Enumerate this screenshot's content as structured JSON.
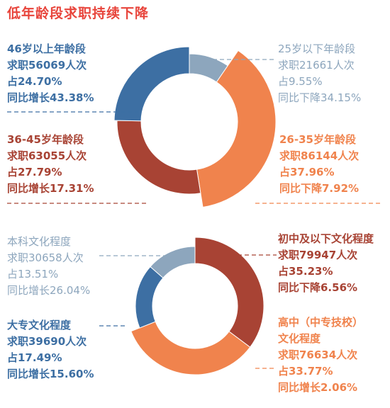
{
  "title": "低年龄段求职持续下降",
  "colors": {
    "title": "#e8453c",
    "steel_blue": "#3d6fa3",
    "light_blue": "#8da6bd",
    "dark_red": "#a84334",
    "orange": "#f0834d"
  },
  "chart_data": [
    {
      "type": "pie",
      "variant": "donut",
      "segments": [
        {
          "label": "25岁以下年龄段",
          "count": "求职21661人次",
          "share": "占9.55%",
          "change": "同比下降34.15%",
          "value": 9.55,
          "color": "#8da6bd"
        },
        {
          "label": "26-35岁年龄段",
          "count": "求职86144人次",
          "share": "占37.96%",
          "change": "同比下降7.92%",
          "value": 37.96,
          "color": "#f0834d"
        },
        {
          "label": "36-45岁年龄段",
          "count": "求职63055人次",
          "share": "占27.79%",
          "change": "同比增长17.31%",
          "value": 27.79,
          "color": "#a84334"
        },
        {
          "label": "46岁以上年龄段",
          "count": "求职56069人次",
          "share": "占24.70%",
          "change": "同比增长43.38%",
          "value": 24.7,
          "color": "#3d6fa3"
        }
      ]
    },
    {
      "type": "pie",
      "variant": "donut",
      "segments": [
        {
          "label": "初中及以下文化程度",
          "count": "求职79947人次",
          "share": "占35.23%",
          "change": "同比下降6.56%",
          "value": 35.23,
          "color": "#a84334"
        },
        {
          "label": "高中（中专技校）文化程度",
          "label_line1": "高中（中专技校）",
          "label_line2": "文化程度",
          "count": "求职76634人次",
          "share": "占33.77%",
          "change": "同比增长2.06%",
          "value": 33.77,
          "color": "#f0834d"
        },
        {
          "label": "大专文化程度",
          "count": "求职39690人次",
          "share": "占17.49%",
          "change": "同比增长15.60%",
          "value": 17.49,
          "color": "#3d6fa3"
        },
        {
          "label": "本科文化程度",
          "count": "求职30658人次",
          "share": "占13.51%",
          "change": "同比增长26.04%",
          "value": 13.51,
          "color": "#8da6bd"
        }
      ]
    }
  ]
}
